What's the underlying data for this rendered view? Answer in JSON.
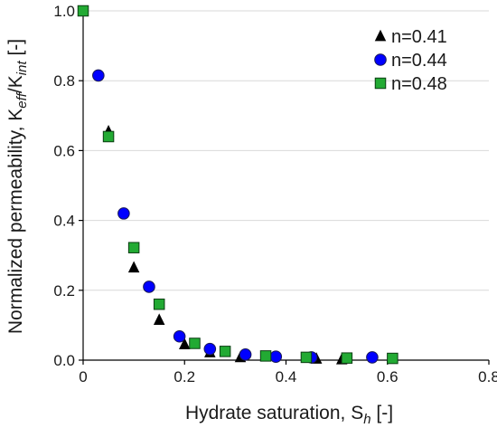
{
  "chart_data": {
    "type": "scatter",
    "xlabel": "Hydrate saturation, S",
    "xlabel_sub": "h",
    "xlabel_unit": " [-]",
    "ylabel": "Normalized permeability, K",
    "ylabel_sub1": "eff",
    "ylabel_mid": "/K",
    "ylabel_sub2": "int",
    "ylabel_unit": " [-]",
    "xlim": [
      0,
      0.8
    ],
    "ylim": [
      0,
      1.0
    ],
    "xticks": [
      "0",
      "0.2",
      "0.4",
      "0.6",
      "0.8"
    ],
    "yticks": [
      "0.0",
      "0.2",
      "0.4",
      "0.6",
      "0.8",
      "1.0"
    ],
    "xtick_values": [
      0,
      0.2,
      0.4,
      0.6,
      0.8
    ],
    "ytick_values": [
      0,
      0.2,
      0.4,
      0.6,
      0.8,
      1.0
    ],
    "grid": "horizontal",
    "legend_position": "top-right",
    "series": [
      {
        "name": "n=0.41",
        "marker": "triangle",
        "color": "#000000",
        "points": [
          [
            0.05,
            0.655
          ],
          [
            0.1,
            0.265
          ],
          [
            0.15,
            0.115
          ],
          [
            0.2,
            0.045
          ],
          [
            0.25,
            0.022
          ],
          [
            0.31,
            0.008
          ],
          [
            0.46,
            0.004
          ],
          [
            0.51,
            0.002
          ]
        ]
      },
      {
        "name": "n=0.44",
        "marker": "circle",
        "color": "#0000ff",
        "points": [
          [
            0.03,
            0.815
          ],
          [
            0.08,
            0.42
          ],
          [
            0.13,
            0.21
          ],
          [
            0.19,
            0.068
          ],
          [
            0.25,
            0.032
          ],
          [
            0.32,
            0.016
          ],
          [
            0.38,
            0.01
          ],
          [
            0.45,
            0.008
          ],
          [
            0.57,
            0.008
          ]
        ]
      },
      {
        "name": "n=0.48",
        "marker": "square",
        "color": "#22aa33",
        "points": [
          [
            0.0,
            1.0
          ],
          [
            0.05,
            0.64
          ],
          [
            0.1,
            0.322
          ],
          [
            0.15,
            0.16
          ],
          [
            0.22,
            0.048
          ],
          [
            0.28,
            0.025
          ],
          [
            0.36,
            0.012
          ],
          [
            0.44,
            0.008
          ],
          [
            0.52,
            0.006
          ],
          [
            0.61,
            0.005
          ]
        ]
      }
    ]
  }
}
